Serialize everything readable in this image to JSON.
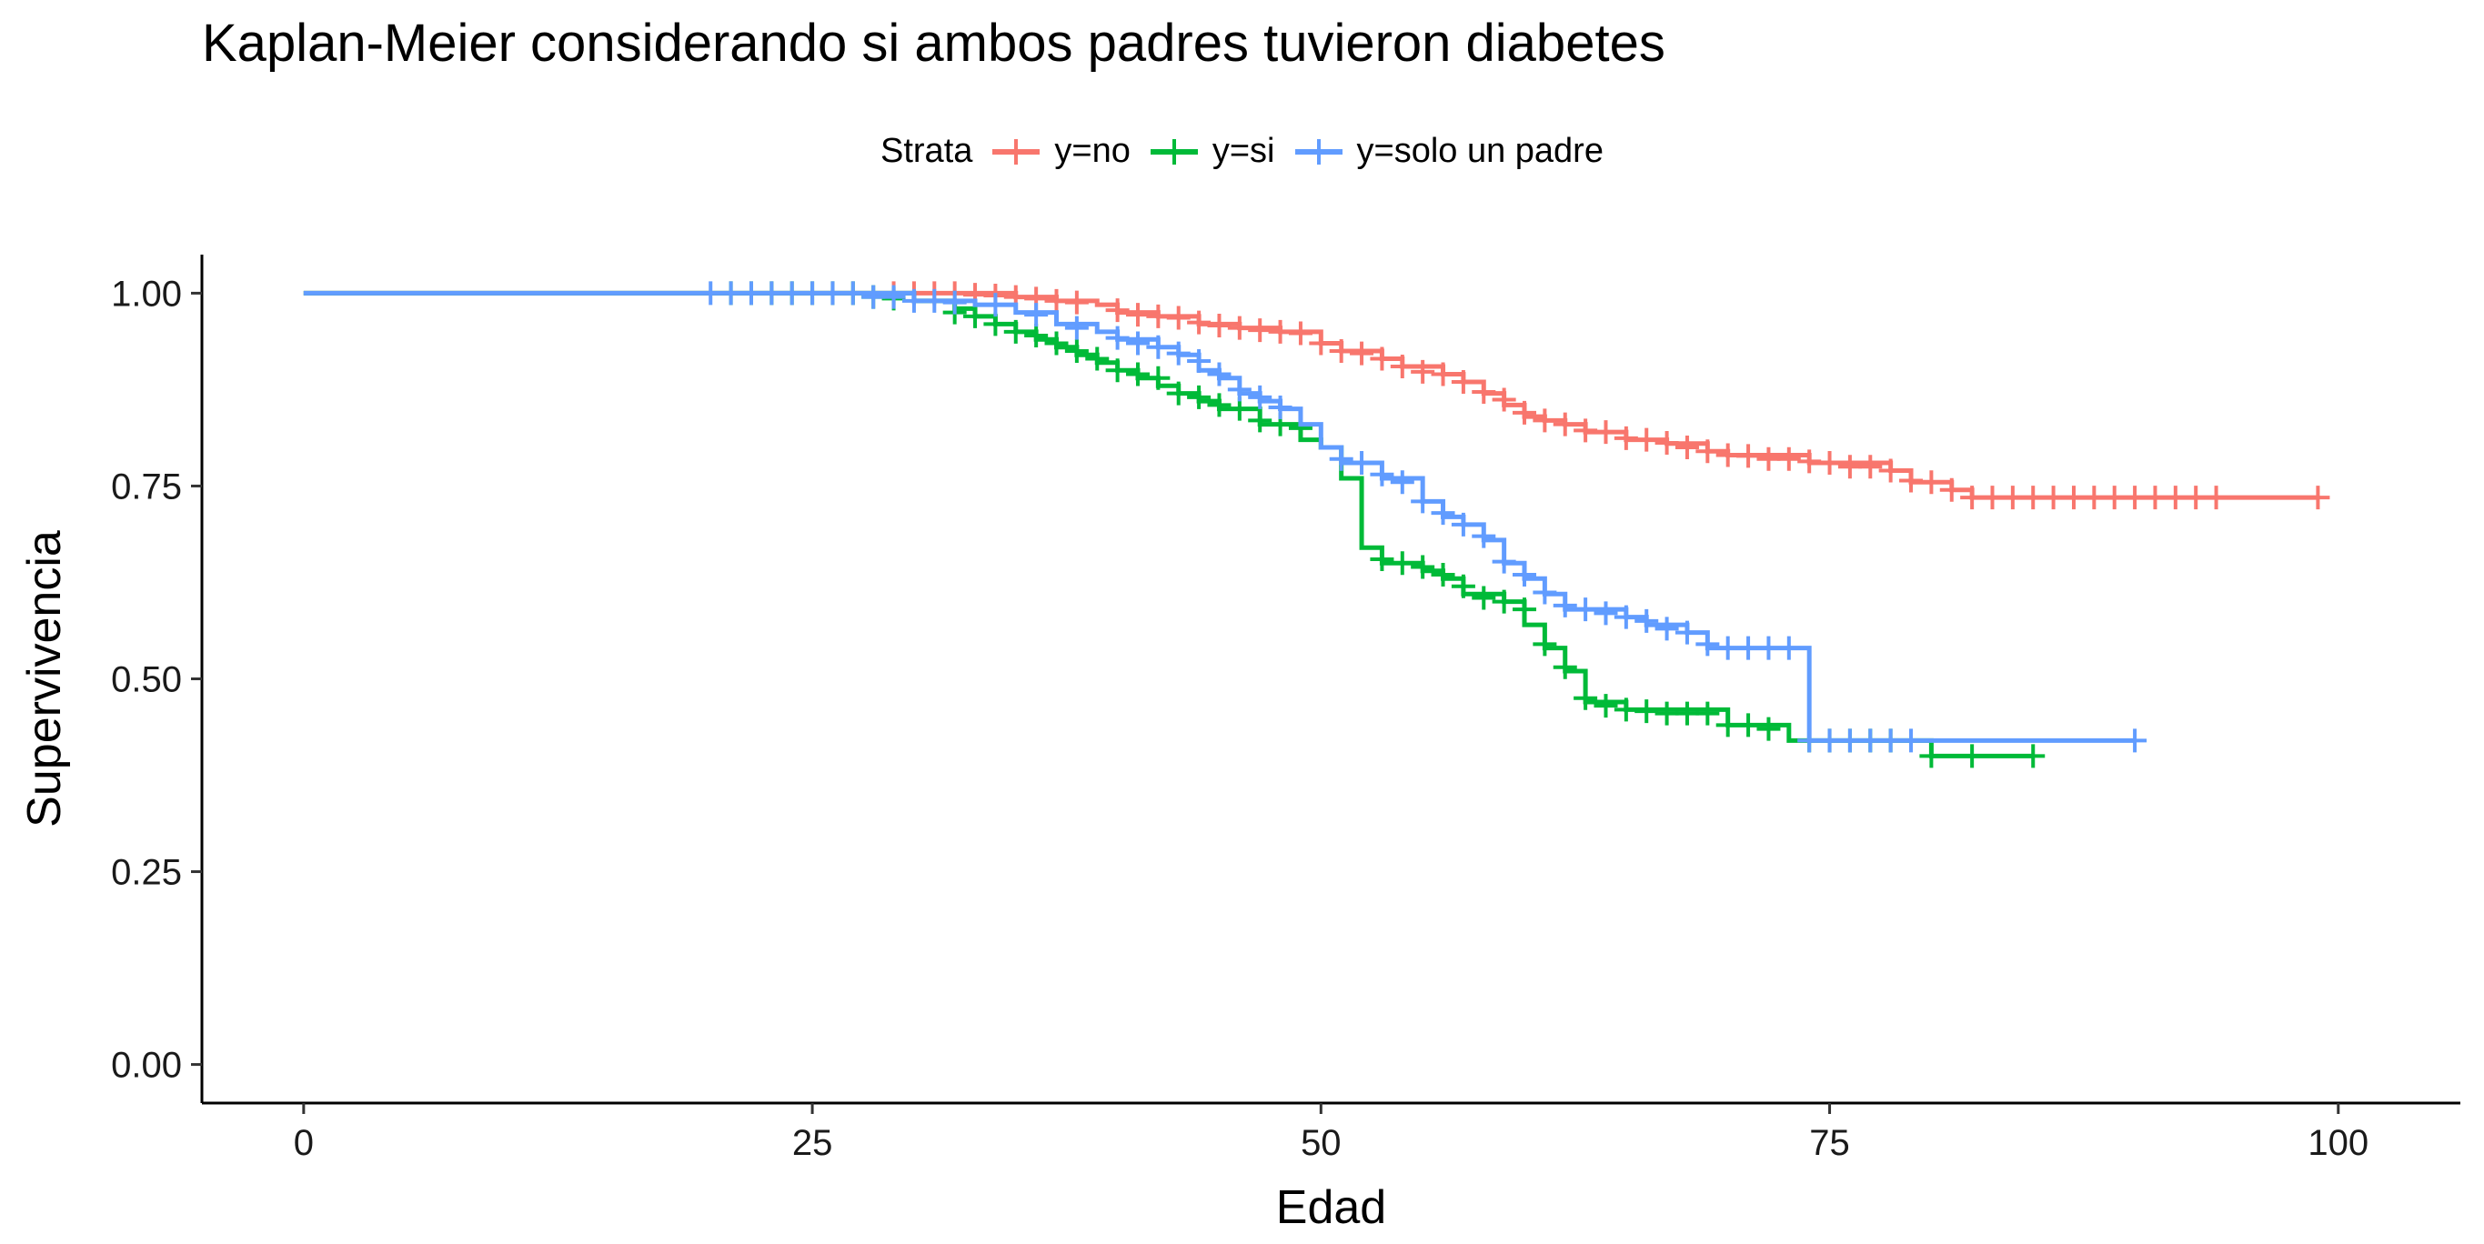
{
  "chart_data": {
    "type": "line",
    "title": "Kaplan-Meier considerando si ambos padres tuvieron diabetes",
    "xlabel": "Edad",
    "ylabel": "Supervivencia",
    "xlim": [
      -5,
      106
    ],
    "ylim": [
      -0.05,
      1.05
    ],
    "x_ticks": [
      0,
      25,
      50,
      75,
      100
    ],
    "y_ticks": [
      0.0,
      0.25,
      0.5,
      0.75,
      1.0
    ],
    "y_tick_labels": [
      "0.00",
      "0.25",
      "0.50",
      "0.75",
      "1.00"
    ],
    "legend_title": "Strata",
    "legend_position": "top",
    "grid": false,
    "series": [
      {
        "name": "y=no",
        "color": "#F8766D",
        "steps": [
          [
            0,
            1.0
          ],
          [
            35,
            0.995
          ],
          [
            37,
            0.99
          ],
          [
            39,
            0.985
          ],
          [
            40,
            0.975
          ],
          [
            42,
            0.97
          ],
          [
            44,
            0.96
          ],
          [
            46,
            0.955
          ],
          [
            48,
            0.95
          ],
          [
            50,
            0.935
          ],
          [
            51,
            0.925
          ],
          [
            53,
            0.915
          ],
          [
            54,
            0.905
          ],
          [
            56,
            0.895
          ],
          [
            57,
            0.885
          ],
          [
            58,
            0.87
          ],
          [
            59,
            0.855
          ],
          [
            60,
            0.84
          ],
          [
            61,
            0.835
          ],
          [
            62,
            0.83
          ],
          [
            63,
            0.82
          ],
          [
            65,
            0.81
          ],
          [
            67,
            0.805
          ],
          [
            69,
            0.795
          ],
          [
            70,
            0.79
          ],
          [
            74,
            0.78
          ],
          [
            78,
            0.77
          ],
          [
            79,
            0.755
          ],
          [
            81,
            0.745
          ],
          [
            82,
            0.735
          ],
          [
            99,
            0.735
          ]
        ],
        "censor": [
          [
            29,
            1.0
          ],
          [
            30,
            1.0
          ],
          [
            31,
            1.0
          ],
          [
            32,
            1.0
          ],
          [
            33,
            0.998
          ],
          [
            34,
            0.997
          ],
          [
            35,
            0.995
          ],
          [
            36,
            0.993
          ],
          [
            37,
            0.99
          ],
          [
            38,
            0.988
          ],
          [
            40,
            0.978
          ],
          [
            41,
            0.972
          ],
          [
            42,
            0.97
          ],
          [
            43,
            0.968
          ],
          [
            44,
            0.962
          ],
          [
            45,
            0.958
          ],
          [
            46,
            0.955
          ],
          [
            47,
            0.952
          ],
          [
            48,
            0.95
          ],
          [
            49,
            0.948
          ],
          [
            50,
            0.935
          ],
          [
            51,
            0.925
          ],
          [
            52,
            0.922
          ],
          [
            53,
            0.915
          ],
          [
            54,
            0.905
          ],
          [
            55,
            0.898
          ],
          [
            56,
            0.895
          ],
          [
            57,
            0.885
          ],
          [
            58,
            0.872
          ],
          [
            59,
            0.862
          ],
          [
            60,
            0.845
          ],
          [
            61,
            0.835
          ],
          [
            62,
            0.83
          ],
          [
            63,
            0.822
          ],
          [
            64,
            0.82
          ],
          [
            65,
            0.812
          ],
          [
            66,
            0.81
          ],
          [
            67,
            0.806
          ],
          [
            68,
            0.8
          ],
          [
            69,
            0.795
          ],
          [
            70,
            0.79
          ],
          [
            71,
            0.789
          ],
          [
            72,
            0.785
          ],
          [
            73,
            0.785
          ],
          [
            74,
            0.782
          ],
          [
            75,
            0.78
          ],
          [
            76,
            0.775
          ],
          [
            77,
            0.775
          ],
          [
            78,
            0.77
          ],
          [
            79,
            0.757
          ],
          [
            80,
            0.755
          ],
          [
            81,
            0.745
          ],
          [
            82,
            0.735
          ],
          [
            83,
            0.735
          ],
          [
            84,
            0.735
          ],
          [
            85,
            0.735
          ],
          [
            86,
            0.735
          ],
          [
            87,
            0.735
          ],
          [
            88,
            0.735
          ],
          [
            89,
            0.735
          ],
          [
            90,
            0.735
          ],
          [
            91,
            0.735
          ],
          [
            92,
            0.735
          ],
          [
            93,
            0.735
          ],
          [
            94,
            0.735
          ],
          [
            99,
            0.735
          ]
        ]
      },
      {
        "name": "y=si",
        "color": "#00BA38",
        "steps": [
          [
            0,
            1.0
          ],
          [
            30,
            0.99
          ],
          [
            32,
            0.98
          ],
          [
            33,
            0.97
          ],
          [
            34,
            0.96
          ],
          [
            35,
            0.95
          ],
          [
            36,
            0.94
          ],
          [
            37,
            0.93
          ],
          [
            38,
            0.92
          ],
          [
            39,
            0.91
          ],
          [
            40,
            0.9
          ],
          [
            41,
            0.89
          ],
          [
            42,
            0.88
          ],
          [
            43,
            0.87
          ],
          [
            44,
            0.86
          ],
          [
            45,
            0.85
          ],
          [
            47,
            0.83
          ],
          [
            49,
            0.81
          ],
          [
            50,
            0.8
          ],
          [
            51,
            0.76
          ],
          [
            52,
            0.67
          ],
          [
            53,
            0.65
          ],
          [
            55,
            0.64
          ],
          [
            56,
            0.63
          ],
          [
            57,
            0.61
          ],
          [
            59,
            0.6
          ],
          [
            60,
            0.57
          ],
          [
            61,
            0.54
          ],
          [
            62,
            0.51
          ],
          [
            63,
            0.47
          ],
          [
            65,
            0.46
          ],
          [
            70,
            0.44
          ],
          [
            73,
            0.42
          ],
          [
            80,
            0.4
          ],
          [
            85,
            0.4
          ]
        ],
        "censor": [
          [
            21,
            1.0
          ],
          [
            22,
            1.0
          ],
          [
            23,
            1.0
          ],
          [
            24,
            1.0
          ],
          [
            25,
            1.0
          ],
          [
            26,
            1.0
          ],
          [
            27,
            1.0
          ],
          [
            28,
            0.995
          ],
          [
            29,
            0.993
          ],
          [
            32,
            0.975
          ],
          [
            33,
            0.97
          ],
          [
            34,
            0.96
          ],
          [
            35,
            0.95
          ],
          [
            36,
            0.945
          ],
          [
            37,
            0.935
          ],
          [
            38,
            0.925
          ],
          [
            39,
            0.915
          ],
          [
            40,
            0.9
          ],
          [
            41,
            0.895
          ],
          [
            42,
            0.89
          ],
          [
            43,
            0.87
          ],
          [
            44,
            0.865
          ],
          [
            45,
            0.855
          ],
          [
            46,
            0.85
          ],
          [
            47,
            0.835
          ],
          [
            48,
            0.83
          ],
          [
            49,
            0.825
          ],
          [
            53,
            0.655
          ],
          [
            54,
            0.65
          ],
          [
            55,
            0.645
          ],
          [
            56,
            0.635
          ],
          [
            57,
            0.62
          ],
          [
            58,
            0.605
          ],
          [
            59,
            0.6
          ],
          [
            60,
            0.59
          ],
          [
            61,
            0.545
          ],
          [
            62,
            0.515
          ],
          [
            63,
            0.475
          ],
          [
            64,
            0.465
          ],
          [
            65,
            0.46
          ],
          [
            66,
            0.458
          ],
          [
            67,
            0.455
          ],
          [
            68,
            0.455
          ],
          [
            69,
            0.455
          ],
          [
            70,
            0.44
          ],
          [
            71,
            0.44
          ],
          [
            72,
            0.435
          ],
          [
            74,
            0.42
          ],
          [
            75,
            0.42
          ],
          [
            76,
            0.42
          ],
          [
            77,
            0.42
          ],
          [
            78,
            0.42
          ],
          [
            80,
            0.4
          ],
          [
            82,
            0.4
          ],
          [
            85,
            0.4
          ]
        ]
      },
      {
        "name": "y=solo un padre",
        "color": "#619CFF",
        "steps": [
          [
            0,
            1.0
          ],
          [
            30,
            0.99
          ],
          [
            33,
            0.985
          ],
          [
            35,
            0.975
          ],
          [
            37,
            0.96
          ],
          [
            39,
            0.95
          ],
          [
            40,
            0.94
          ],
          [
            42,
            0.93
          ],
          [
            43,
            0.92
          ],
          [
            44,
            0.9
          ],
          [
            45,
            0.89
          ],
          [
            46,
            0.87
          ],
          [
            47,
            0.86
          ],
          [
            48,
            0.85
          ],
          [
            49,
            0.83
          ],
          [
            50,
            0.8
          ],
          [
            51,
            0.78
          ],
          [
            53,
            0.76
          ],
          [
            55,
            0.73
          ],
          [
            56,
            0.71
          ],
          [
            57,
            0.7
          ],
          [
            58,
            0.68
          ],
          [
            59,
            0.65
          ],
          [
            60,
            0.63
          ],
          [
            61,
            0.61
          ],
          [
            62,
            0.59
          ],
          [
            65,
            0.58
          ],
          [
            66,
            0.57
          ],
          [
            68,
            0.56
          ],
          [
            69,
            0.54
          ],
          [
            74,
            0.42
          ],
          [
            90,
            0.42
          ]
        ],
        "censor": [
          [
            20,
            1.0
          ],
          [
            21,
            1.0
          ],
          [
            22,
            1.0
          ],
          [
            23,
            1.0
          ],
          [
            24,
            1.0
          ],
          [
            25,
            1.0
          ],
          [
            26,
            1.0
          ],
          [
            27,
            1.0
          ],
          [
            28,
            0.995
          ],
          [
            29,
            0.995
          ],
          [
            30,
            0.99
          ],
          [
            31,
            0.99
          ],
          [
            32,
            0.988
          ],
          [
            34,
            0.985
          ],
          [
            36,
            0.972
          ],
          [
            38,
            0.955
          ],
          [
            40,
            0.942
          ],
          [
            41,
            0.935
          ],
          [
            42,
            0.93
          ],
          [
            43,
            0.922
          ],
          [
            44,
            0.912
          ],
          [
            45,
            0.895
          ],
          [
            46,
            0.875
          ],
          [
            47,
            0.865
          ],
          [
            48,
            0.852
          ],
          [
            51,
            0.785
          ],
          [
            52,
            0.78
          ],
          [
            53,
            0.765
          ],
          [
            54,
            0.755
          ],
          [
            55,
            0.73
          ],
          [
            56,
            0.715
          ],
          [
            57,
            0.7
          ],
          [
            58,
            0.685
          ],
          [
            59,
            0.652
          ],
          [
            60,
            0.635
          ],
          [
            61,
            0.612
          ],
          [
            62,
            0.595
          ],
          [
            63,
            0.59
          ],
          [
            64,
            0.585
          ],
          [
            65,
            0.58
          ],
          [
            66,
            0.575
          ],
          [
            67,
            0.565
          ],
          [
            68,
            0.56
          ],
          [
            69,
            0.545
          ],
          [
            70,
            0.54
          ],
          [
            71,
            0.54
          ],
          [
            72,
            0.54
          ],
          [
            73,
            0.54
          ],
          [
            74,
            0.42
          ],
          [
            75,
            0.42
          ],
          [
            76,
            0.42
          ],
          [
            77,
            0.42
          ],
          [
            78,
            0.42
          ],
          [
            79,
            0.42
          ],
          [
            90,
            0.42
          ]
        ]
      }
    ]
  }
}
